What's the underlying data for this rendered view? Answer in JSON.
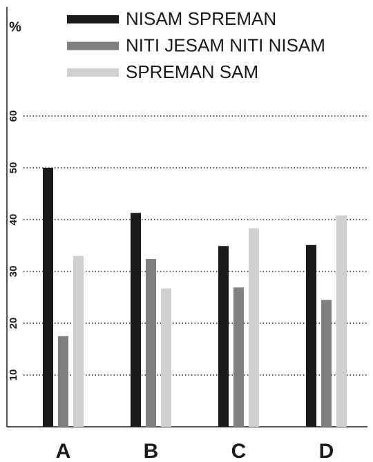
{
  "chart_data": {
    "type": "bar",
    "y_label": "%",
    "categories": [
      "A",
      "B",
      "C",
      "D"
    ],
    "series": [
      {
        "name": "NISAM SPREMAN",
        "color": "#1a1a1a",
        "values": [
          50,
          41.3,
          34.9,
          35.1
        ]
      },
      {
        "name": "NITI JESAM NITI NISAM",
        "color": "#808080",
        "values": [
          17.5,
          32.4,
          26.9,
          24.5
        ]
      },
      {
        "name": "SPREMAN SAM",
        "color": "#d0d0d0",
        "values": [
          33,
          26.7,
          38.3,
          40.8
        ]
      }
    ],
    "ylim": [
      0,
      80
    ],
    "yticks": [
      10,
      20,
      30,
      40,
      50,
      60
    ],
    "grid": true,
    "legend": "top"
  }
}
